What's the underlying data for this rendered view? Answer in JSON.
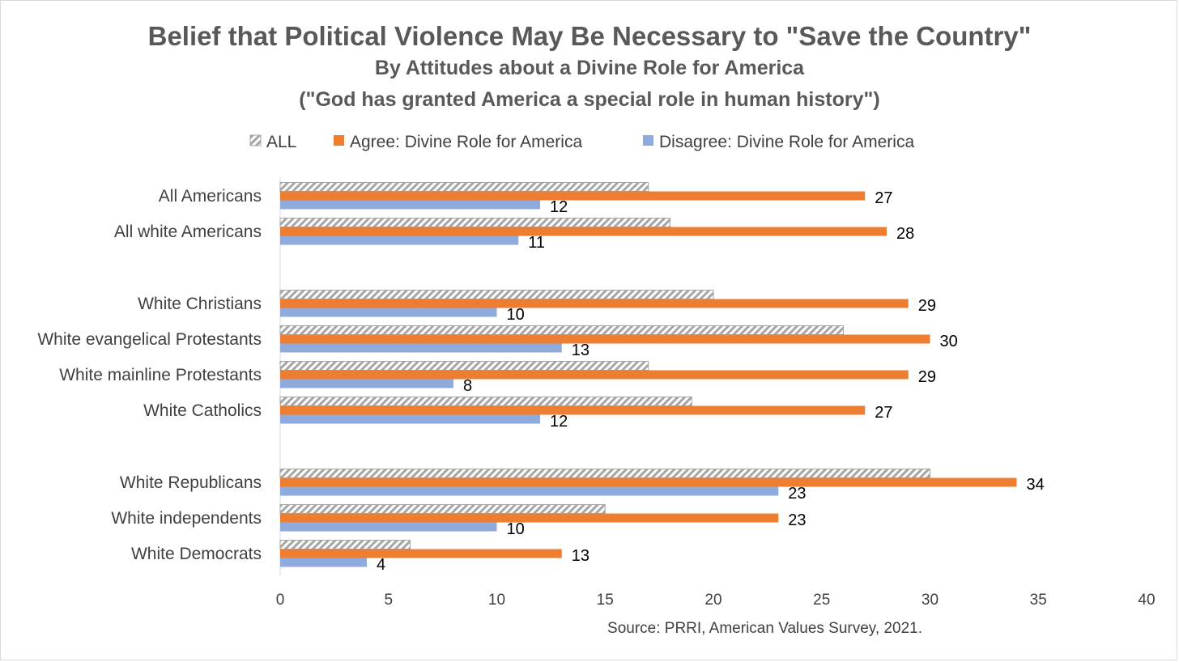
{
  "chart_data": {
    "type": "bar",
    "orientation": "horizontal",
    "title": "Belief that Political Violence May Be Necessary to \"Save the Country\"",
    "subtitle": "By Attitudes about a Divine Role for America",
    "subtitle2": "(\"God has granted America a special role in human history\")",
    "source": "Source: PRRI, American Values Survey, 2021.",
    "xlim": [
      0,
      40
    ],
    "xticks": [
      "0",
      "5",
      "10",
      "15",
      "20",
      "25",
      "30",
      "35",
      "40"
    ],
    "legend_position": "top",
    "groups": [
      {
        "categories": [
          "All Americans",
          "All white Americans"
        ]
      },
      {
        "categories": [
          "White Christians",
          "White evangelical Protestants",
          "White mainline Protestants",
          "White Catholics"
        ]
      },
      {
        "categories": [
          "White Republicans",
          "White independents",
          "White Democrats"
        ]
      }
    ],
    "categories": [
      "All Americans",
      "All white Americans",
      "White Christians",
      "White evangelical Protestants",
      "White mainline Protestants",
      "White Catholics",
      "White Republicans",
      "White independents",
      "White Democrats"
    ],
    "series": [
      {
        "name": "ALL",
        "color": "#a6a6a6",
        "pattern": "hatched",
        "values": [
          17,
          18,
          20,
          26,
          17,
          19,
          30,
          15,
          6
        ],
        "labeled": false
      },
      {
        "name": "Agree: Divine Role for America",
        "color": "#ed7d31",
        "values": [
          27,
          28,
          29,
          30,
          29,
          27,
          34,
          23,
          13
        ],
        "labeled": true
      },
      {
        "name": "Disagree: Divine Role for America",
        "color": "#8faadc",
        "values": [
          12,
          11,
          10,
          13,
          8,
          12,
          23,
          10,
          4
        ],
        "labeled": true
      }
    ]
  }
}
